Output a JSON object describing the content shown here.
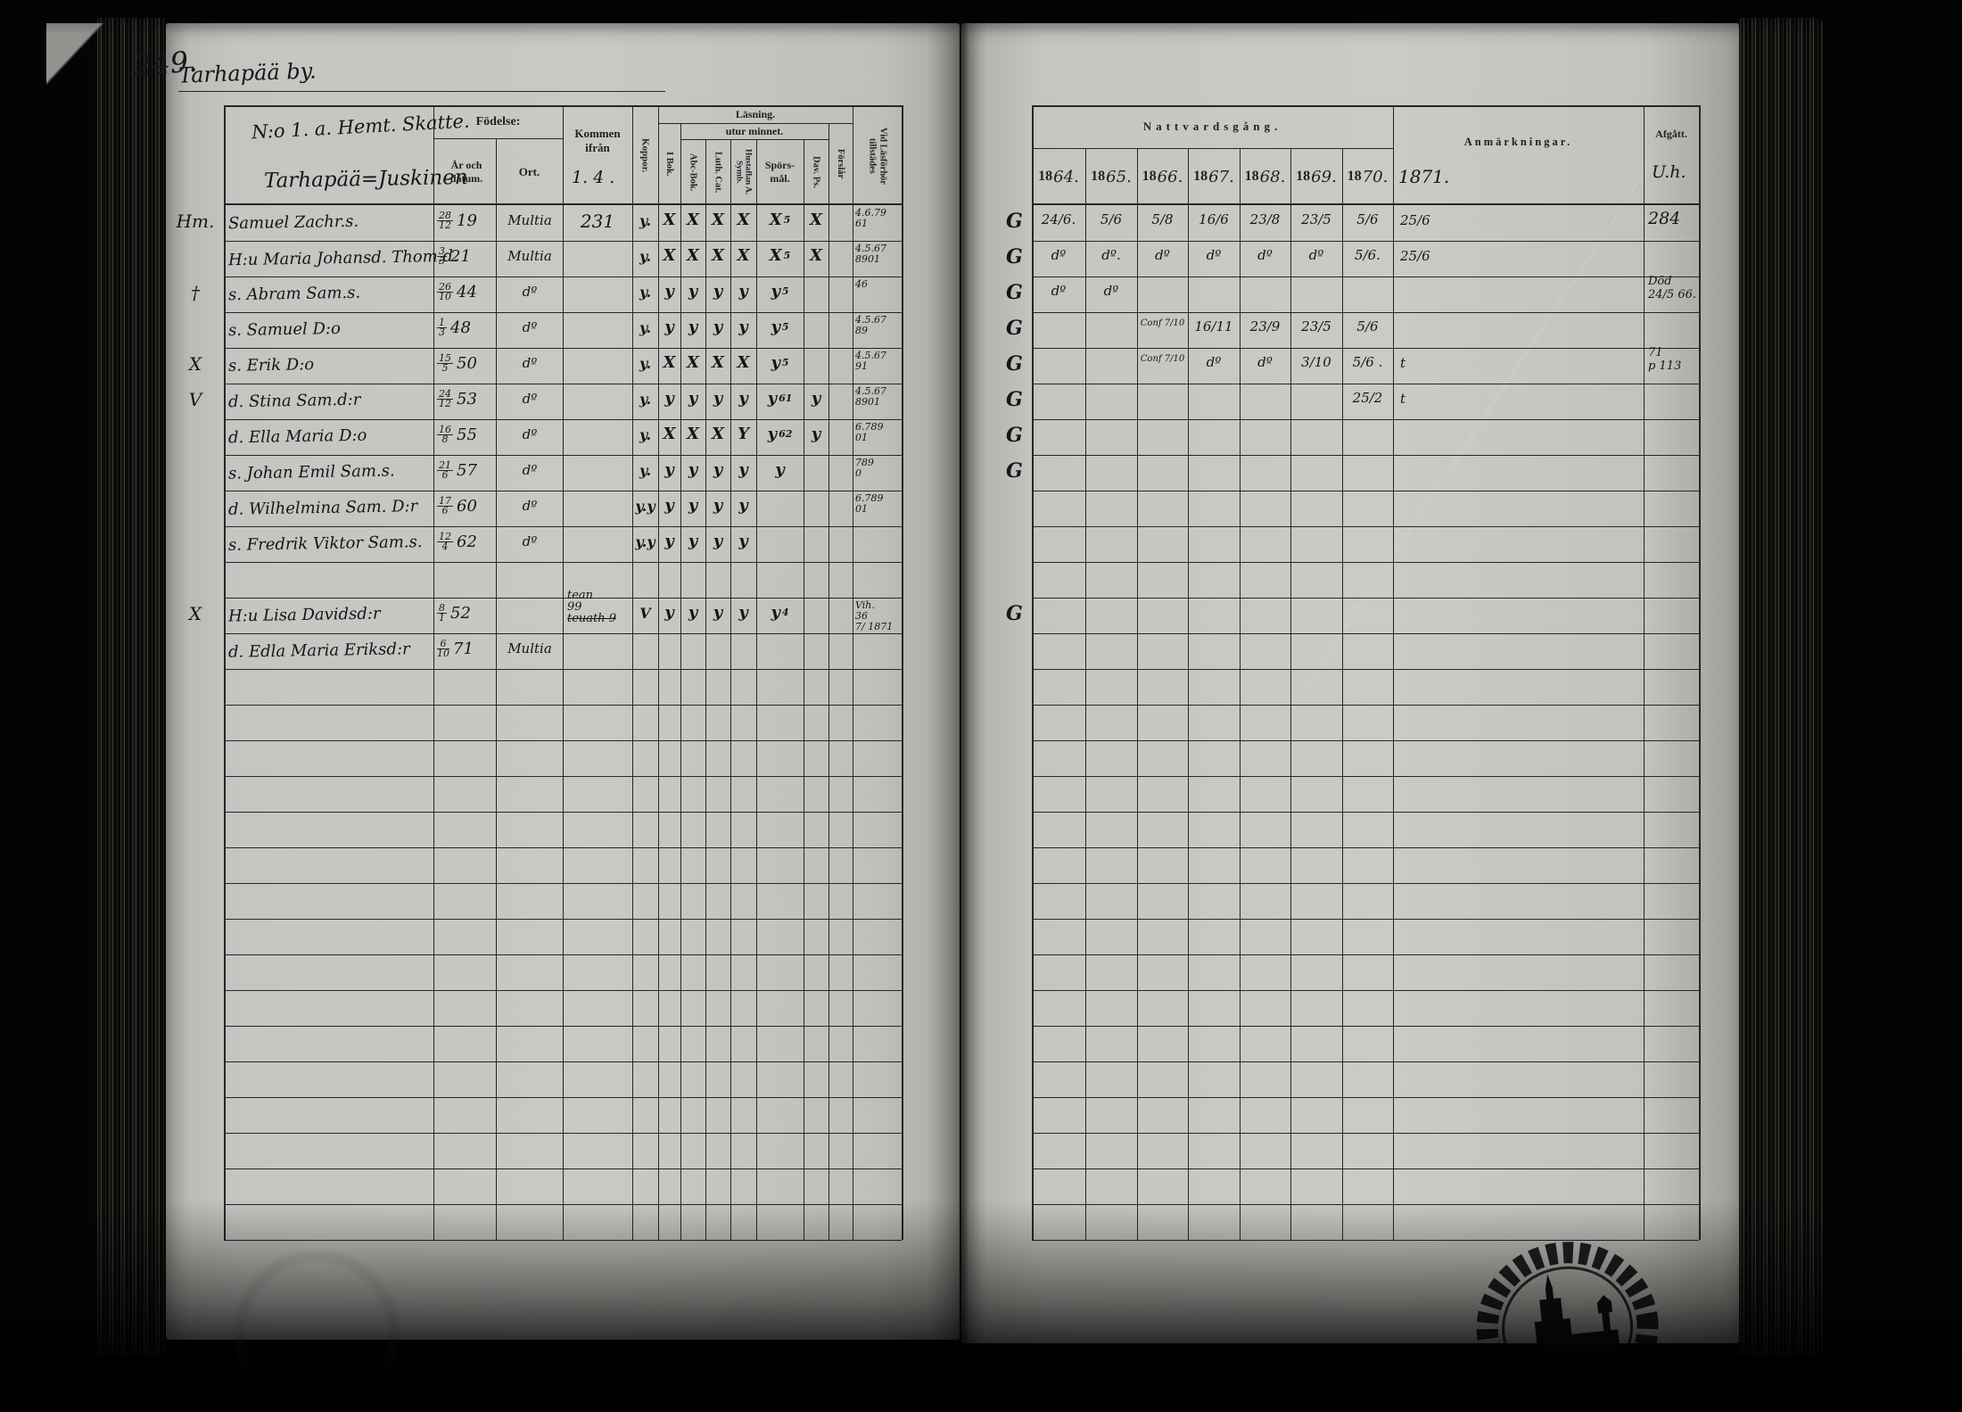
{
  "page": {
    "number": "249.",
    "village": "Tarhapää by.",
    "household_no": "N:o 1. a. Hemt. Skatte.",
    "family_name": "Tarhapää=Juskinen"
  },
  "left_headers": {
    "fodelse": "Födelse:",
    "ar_datum": "År och datum.",
    "ort": "Ort.",
    "kommen": "Kommen ifrån",
    "kommen_note": "1. 4 .",
    "koppor": "Koppor.",
    "lasning": "Läsning.",
    "utur_minnet": "utur minnet.",
    "cols": [
      "I Bok.",
      "Abc-Bok.",
      "Luth. Cat.",
      "Hustaflan A. Symb.",
      "Spörs-mål.",
      "Dav. Ps.",
      "Förslår",
      "Vid Läsförhör tillstädes"
    ]
  },
  "right_headers": {
    "nattvardsgang": "Nattvardsgång.",
    "years": [
      "1864.",
      "1865.",
      "1866.",
      "1867.",
      "1868.",
      "1869.",
      "1870."
    ],
    "year_extra": "1871.",
    "anmarkningar": "Anmärkningar.",
    "afgatt": "Afgått.",
    "afgatt_note": "U.h."
  },
  "rows": [
    {
      "margin": "Hm.",
      "name": "Samuel Zachr.s.",
      "bdate": "28/12",
      "byear": "19",
      "ort": "Multia",
      "kommen": [
        "231"
      ],
      "koppor": "y.",
      "reading": [
        "X",
        "X",
        "X",
        "X",
        "X",
        "X"
      ],
      "spors_sup": "5",
      "vidlas": [
        "4.6.79",
        "61"
      ],
      "g": "G",
      "years": [
        "24/6.",
        "5/6",
        "5/8",
        "16/6",
        "23/8",
        "23/5",
        "5/6"
      ],
      "y1871": "25/6",
      "afgatt": [
        "284"
      ]
    },
    {
      "margin": "",
      "name": "H:u Maria Johansd. Thom.d.",
      "bdate": "3/3",
      "byear": "21",
      "ort": "Multia",
      "kommen": [],
      "koppor": "y.",
      "reading": [
        "X",
        "X",
        "X",
        "X",
        "X",
        "X"
      ],
      "spors_sup": "5",
      "vidlas": [
        "4.5.67",
        "8901"
      ],
      "g": "G",
      "years": [
        "dº",
        "dº.",
        "dº",
        "dº",
        "dº",
        "dº",
        "5/6."
      ],
      "y1871": "25/6",
      "afgatt": []
    },
    {
      "margin": "†",
      "name": "s. Abram Sam.s.",
      "bdate": "26/10",
      "byear": "44",
      "ort": "dº",
      "kommen": [],
      "koppor": "y.",
      "reading": [
        "y",
        "y",
        "y",
        "y",
        "y",
        ""
      ],
      "spors_sup": "5",
      "vidlas": [
        "46"
      ],
      "g": "G",
      "years": [
        "dº",
        "dº",
        "",
        "",
        "",
        "",
        ""
      ],
      "y1871": "",
      "afgatt": [
        "Död",
        "24/5 66."
      ]
    },
    {
      "margin": "",
      "name": "s. Samuel D:o",
      "bdate": "1/3",
      "byear": "48",
      "ort": "dº",
      "kommen": [],
      "koppor": "y.",
      "reading": [
        "y",
        "y",
        "y",
        "y",
        "y",
        ""
      ],
      "spors_sup": "5",
      "vidlas": [
        "4.5.67",
        "89"
      ],
      "g": "G",
      "years": [
        "",
        "",
        "Conf 7/10",
        "16/11",
        "23/9",
        "23/5",
        "5/6"
      ],
      "y1871": "",
      "afgatt": []
    },
    {
      "margin": "X",
      "name": "s. Erik D:o",
      "bdate": "15/5",
      "byear": "50",
      "ort": "dº",
      "kommen": [],
      "koppor": "y.",
      "reading": [
        "X",
        "X",
        "X",
        "X",
        "y",
        ""
      ],
      "spors_sup": "5",
      "vidlas": [
        "4.5.67",
        "91"
      ],
      "g": "G",
      "years": [
        "",
        "",
        "Conf 7/10",
        "dº",
        "dº",
        "3/10",
        "5/6 ."
      ],
      "y1871": "t",
      "afgatt": [
        "71",
        "p 113"
      ]
    },
    {
      "margin": "V",
      "name": "d. Stina Sam.d:r",
      "bdate": "24/12",
      "byear": "53",
      "ort": "dº",
      "kommen": [],
      "koppor": "y.",
      "reading": [
        "y",
        "y",
        "y",
        "y",
        "y",
        "y"
      ],
      "spors_sup": "61",
      "vidlas": [
        "4.5.67",
        "8901"
      ],
      "g": "G",
      "years": [
        "",
        "",
        "",
        "",
        "",
        "",
        "25/2"
      ],
      "y1871": "t",
      "afgatt": []
    },
    {
      "margin": "",
      "name": "d. Ella Maria D:o",
      "bdate": "16/8",
      "byear": "55",
      "ort": "dº",
      "kommen": [],
      "koppor": "y.",
      "reading": [
        "X",
        "X",
        "X",
        "Y",
        "y",
        "y"
      ],
      "spors_sup": "62",
      "vidlas": [
        "6.789",
        "01"
      ],
      "g": "G",
      "years": [
        "",
        "",
        "",
        "",
        "",
        "",
        ""
      ],
      "y1871": "",
      "afgatt": []
    },
    {
      "margin": "",
      "name": "s. Johan Emil Sam.s.",
      "bdate": "21/6",
      "byear": "57",
      "ort": "dº",
      "kommen": [],
      "koppor": "y.",
      "reading": [
        "y",
        "y",
        "y",
        "y",
        "y",
        ""
      ],
      "spors_sup": "",
      "vidlas": [
        "789",
        "0"
      ],
      "g": "G",
      "years": [
        "",
        "",
        "",
        "",
        "",
        "",
        ""
      ],
      "y1871": "",
      "afgatt": []
    },
    {
      "margin": "",
      "name": "d. Wilhelmina Sam. D:r",
      "bdate": "17/6",
      "byear": "60",
      "ort": "dº",
      "kommen": [],
      "koppor": "y.y",
      "reading": [
        "y",
        "y",
        "y",
        "y",
        "",
        ""
      ],
      "spors_sup": "",
      "vidlas": [
        "6.789",
        "01"
      ],
      "g": "",
      "years": [
        "",
        "",
        "",
        "",
        "",
        "",
        ""
      ],
      "y1871": "",
      "afgatt": []
    },
    {
      "margin": "",
      "name": "s. Fredrik Viktor Sam.s.",
      "bdate": "12/4",
      "byear": "62",
      "ort": "dº",
      "kommen": [],
      "koppor": "y.y",
      "reading": [
        "y",
        "y",
        "y",
        "y",
        "",
        ""
      ],
      "spors_sup": "",
      "vidlas": [],
      "g": "",
      "years": [
        "",
        "",
        "",
        "",
        "",
        "",
        ""
      ],
      "y1871": "",
      "afgatt": []
    },
    {
      "margin": "",
      "name": "",
      "bdate": "",
      "byear": "",
      "ort": "",
      "kommen": [],
      "koppor": "",
      "reading": [
        "",
        "",
        "",
        "",
        "",
        ""
      ],
      "spors_sup": "",
      "vidlas": [],
      "g": "",
      "years": [
        "",
        "",
        "",
        "",
        "",
        "",
        ""
      ],
      "y1871": "",
      "afgatt": []
    },
    {
      "margin": "X",
      "name": "H:u Lisa Davidsd:r",
      "bdate": "8/1",
      "byear": "52",
      "ort": "",
      "kommen": [
        "tean",
        "99",
        "teuath 9"
      ],
      "koppor": "V",
      "reading": [
        "y",
        "y",
        "y",
        "y",
        "y",
        ""
      ],
      "spors_sup": "4",
      "vidlas": [
        "Vih.",
        "36",
        "7/ 1871"
      ],
      "g": "G",
      "years": [
        "",
        "",
        "",
        "",
        "",
        "",
        ""
      ],
      "y1871": "",
      "afgatt": []
    },
    {
      "margin": "",
      "name": "d. Edla Maria Eriksd:r",
      "bdate": "6/10",
      "byear": "71",
      "ort": "Multia",
      "kommen": [],
      "koppor": "",
      "reading": [
        "",
        "",
        "",
        "",
        "",
        ""
      ],
      "spors_sup": "",
      "vidlas": [],
      "g": "",
      "years": [
        "",
        "",
        "",
        "",
        "",
        "",
        ""
      ],
      "y1871": "",
      "afgatt": []
    }
  ],
  "stamps": {
    "right_icon": "church-seal-stamp",
    "left_icon": "faint-round-stamp"
  }
}
